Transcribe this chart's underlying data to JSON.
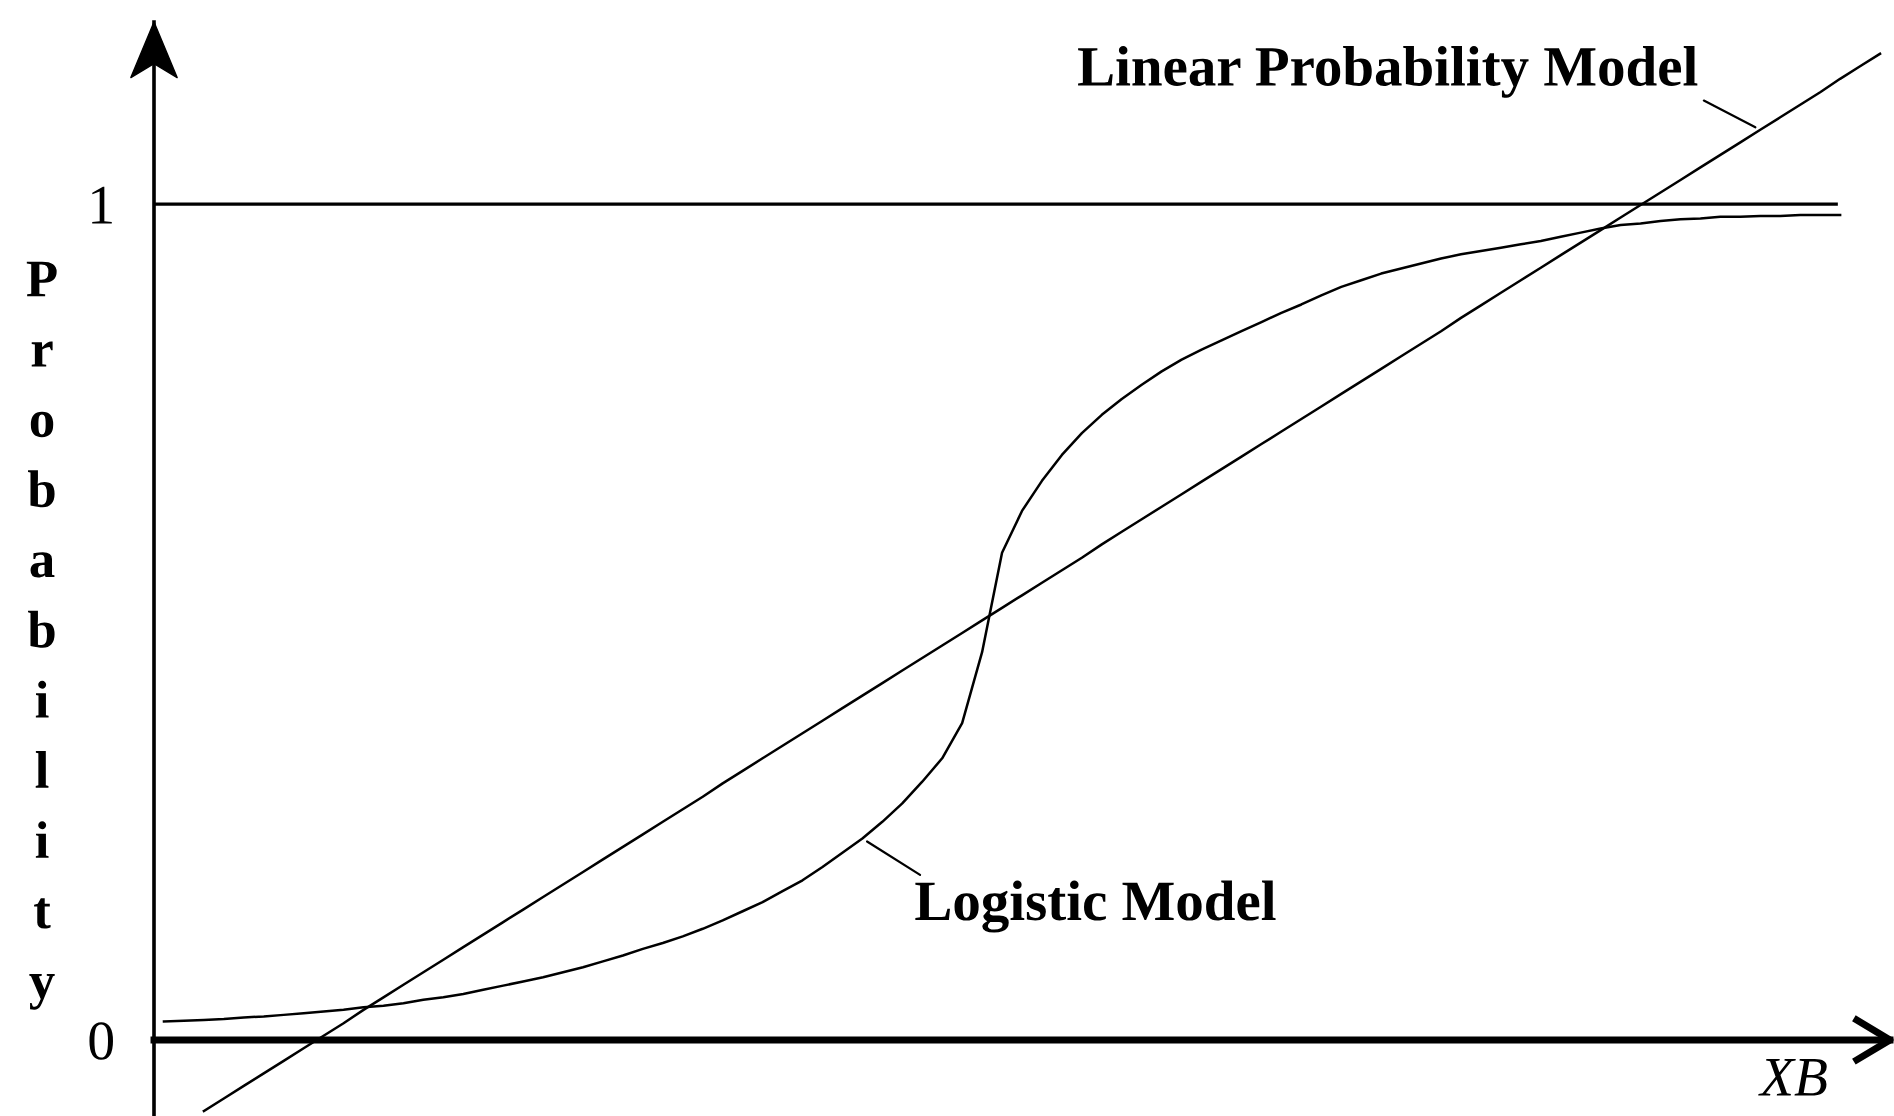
{
  "chart_data": {
    "type": "line",
    "xlabel": "XB",
    "ylabel": "Probability",
    "categories": [
      null,
      null,
      null,
      null,
      null,
      null,
      null,
      null,
      null,
      null,
      null,
      null,
      null,
      null,
      null,
      null,
      null,
      null,
      null,
      null,
      null,
      null,
      null,
      null,
      null,
      null,
      null,
      null,
      null,
      null,
      null,
      null,
      null,
      null,
      null,
      null,
      null,
      null,
      null,
      null,
      null,
      null,
      null,
      null,
      null,
      null,
      null,
      null,
      null,
      null,
      null,
      null,
      null,
      null,
      null,
      null,
      null,
      null,
      null,
      null,
      null,
      null,
      null,
      null,
      null,
      null,
      null,
      null,
      null,
      null,
      null,
      null,
      null,
      null,
      null,
      null,
      null,
      null,
      null,
      null,
      null,
      null,
      null,
      null,
      null,
      null,
      null
    ],
    "ylim": [
      -0.091,
      1.218
    ],
    "yticks": [
      0,
      1
    ],
    "ref_lines": [
      {
        "axis": "y",
        "value": 1,
        "color": "#000000"
      }
    ],
    "series": [
      {
        "name": "Logistic Model",
        "color": "#000000",
        "values": [
          0.022,
          0.023,
          0.024,
          0.025,
          0.027,
          0.028,
          0.03,
          0.032,
          0.034,
          0.036,
          0.039,
          0.041,
          0.044,
          0.048,
          0.051,
          0.055,
          0.06,
          0.065,
          0.07,
          0.075,
          0.081,
          0.087,
          0.094,
          0.101,
          0.109,
          0.116,
          0.124,
          0.133,
          0.143,
          0.154,
          0.165,
          0.178,
          0.191,
          0.207,
          0.224,
          0.241,
          0.261,
          0.283,
          0.309,
          0.337,
          0.379,
          0.464,
          0.583,
          0.633,
          0.669,
          0.7,
          0.726,
          0.748,
          0.767,
          0.784,
          0.8,
          0.814,
          0.826,
          0.837,
          0.848,
          0.859,
          0.87,
          0.88,
          0.891,
          0.901,
          0.909,
          0.917,
          0.923,
          0.929,
          0.935,
          0.94,
          0.944,
          0.948,
          0.952,
          0.956,
          0.961,
          0.966,
          0.971,
          0.975,
          0.977,
          0.98,
          0.982,
          0.983,
          0.985,
          0.985,
          0.986,
          0.986,
          0.987,
          0.987,
          0.987,
          null,
          null
        ]
      },
      {
        "name": "Linear Probability Model",
        "color": "#000000",
        "values": [
          null,
          null,
          -0.085,
          -0.07,
          -0.055,
          -0.04,
          -0.025,
          -0.01,
          0.005,
          0.02,
          0.036,
          0.051,
          0.066,
          0.081,
          0.096,
          0.111,
          0.126,
          0.141,
          0.156,
          0.171,
          0.186,
          0.201,
          0.216,
          0.231,
          0.246,
          0.261,
          0.276,
          0.291,
          0.307,
          0.322,
          0.337,
          0.352,
          0.367,
          0.382,
          0.397,
          0.412,
          0.427,
          0.442,
          0.457,
          0.472,
          0.487,
          0.502,
          0.517,
          0.532,
          0.547,
          0.562,
          0.577,
          0.593,
          0.608,
          0.623,
          0.638,
          0.653,
          0.668,
          0.683,
          0.698,
          0.713,
          0.728,
          0.743,
          0.758,
          0.773,
          0.788,
          0.803,
          0.818,
          0.833,
          0.848,
          0.864,
          0.879,
          0.894,
          0.909,
          0.924,
          0.939,
          0.954,
          0.969,
          0.984,
          0.999,
          1.014,
          1.029,
          1.044,
          1.059,
          1.074,
          1.089,
          1.104,
          1.119,
          1.134,
          1.15,
          1.165,
          1.18
        ]
      }
    ]
  }
}
